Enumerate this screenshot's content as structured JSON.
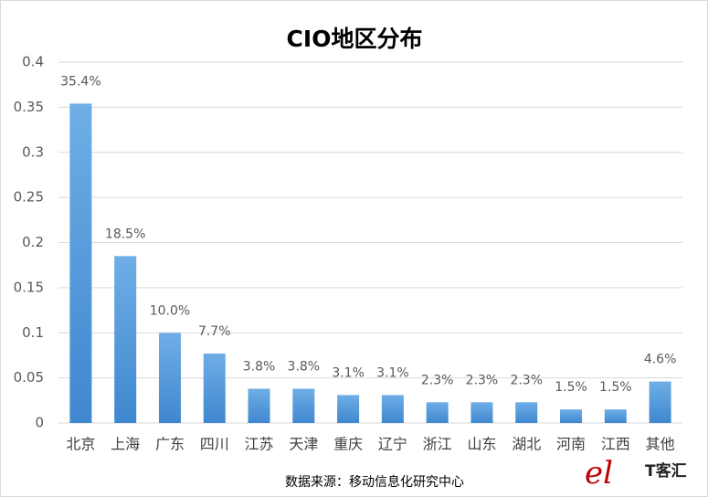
{
  "chart_data": {
    "type": "bar",
    "title": "CIO地区分布",
    "categories": [
      "北京",
      "上海",
      "广东",
      "四川",
      "江苏",
      "天津",
      "重庆",
      "辽宁",
      "浙江",
      "山东",
      "湖北",
      "河南",
      "江西",
      "其他"
    ],
    "values": [
      0.354,
      0.185,
      0.1,
      0.077,
      0.038,
      0.038,
      0.031,
      0.031,
      0.023,
      0.023,
      0.023,
      0.015,
      0.015,
      0.046
    ],
    "value_labels": [
      "35.4%",
      "18.5%",
      "10.0%",
      "7.7%",
      "3.8%",
      "3.8%",
      "3.1%",
      "3.1%",
      "2.3%",
      "2.3%",
      "2.3%",
      "1.5%",
      "1.5%",
      "4.6%"
    ],
    "color": "#5b9bd5",
    "ylim": [
      0,
      0.4
    ],
    "yticks": [
      0,
      0.05,
      0.1,
      0.15,
      0.2,
      0.25,
      0.3,
      0.35,
      0.4
    ],
    "grid": true,
    "source": "数据来源：移动信息化研究中心",
    "watermark": "T客汇"
  }
}
